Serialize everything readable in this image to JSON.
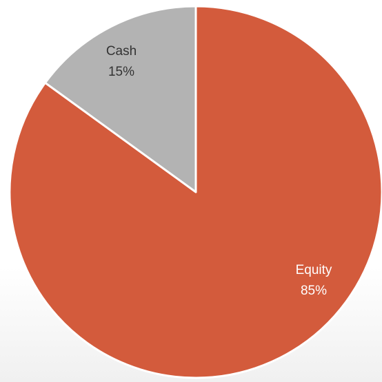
{
  "chart_data": {
    "type": "pie",
    "categories": [
      "Equity",
      "Cash"
    ],
    "values": [
      85,
      15
    ],
    "value_labels": [
      "85%",
      "15%"
    ],
    "colors": [
      "#d35b3c",
      "#b3b3b3"
    ],
    "label_colors": [
      "#ffffff",
      "#333333"
    ]
  }
}
